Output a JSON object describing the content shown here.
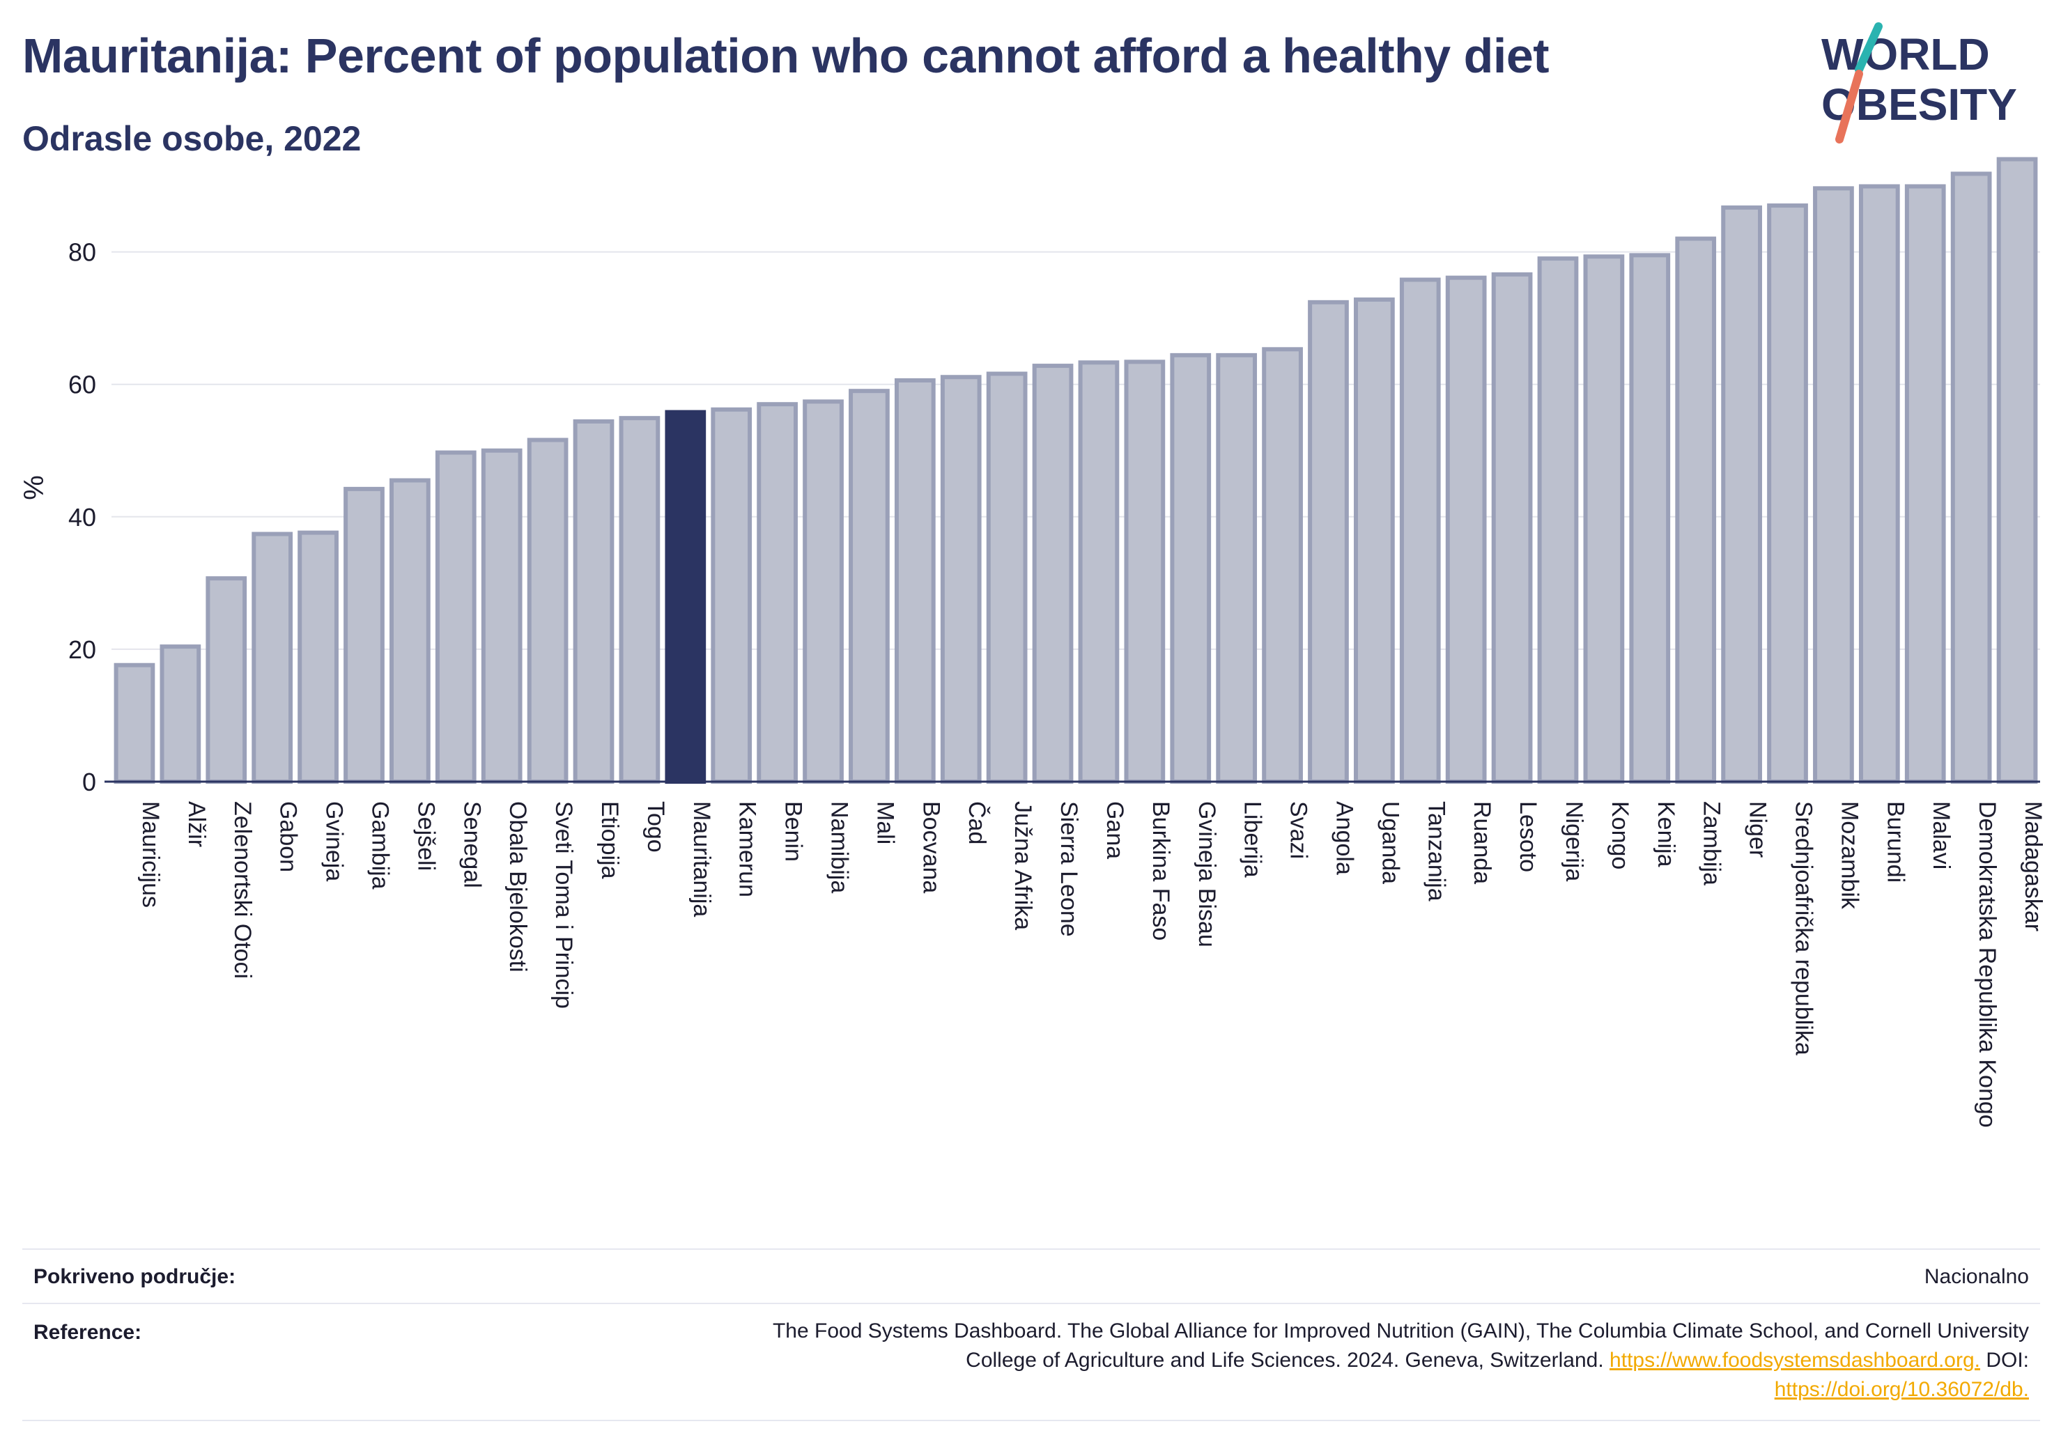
{
  "header": {
    "title": "Mauritanija: Percent of population who cannot afford a healthy diet",
    "subtitle": "Odrasle osobe, 2022",
    "logo": {
      "line1": "WORLD",
      "line2": "OBESITY"
    }
  },
  "colors": {
    "title": "#2b3462",
    "bar_fill": "#bcc0ce",
    "bar_stroke": "#9aa0b8",
    "highlight": "#2b3462",
    "logo_teal": "#2ab3b0",
    "logo_coral": "#e8735a",
    "link": "#f2a900"
  },
  "chart_data": {
    "type": "bar",
    "ylabel": "%",
    "ylim": [
      0,
      97
    ],
    "yticks": [
      0,
      20,
      40,
      60,
      80
    ],
    "grid": true,
    "highlight_category": "Mauritanija",
    "categories": [
      "Mauricijus",
      "Alžir",
      "Zelenortski Otoci",
      "Gabon",
      "Gvineja",
      "Gambija",
      "Sejšeli",
      "Senegal",
      "Obala Bjelokosti",
      "Sveti Toma i Princip",
      "Etiopija",
      "Togo",
      "Mauritanija",
      "Kamerun",
      "Benin",
      "Namibija",
      "Mali",
      "Bocvana",
      "Čad",
      "Južna Afrika",
      "Sierra Leone",
      "Gana",
      "Burkina Faso",
      "Gvineja Bisau",
      "Liberija",
      "Svazi",
      "Angola",
      "Uganda",
      "Tanzanija",
      "Ruanda",
      "Lesoto",
      "Nigerija",
      "Kongo",
      "Kenija",
      "Zambija",
      "Niger",
      "Srednjoafrička republika",
      "Mozambik",
      "Burundi",
      "Malavi",
      "Demokratska Republika Kongo",
      "Madagaskar"
    ],
    "values": [
      17.6,
      20.4,
      30.7,
      37.4,
      37.6,
      44.2,
      45.5,
      49.7,
      50.0,
      51.6,
      54.4,
      54.9,
      55.8,
      56.2,
      57.0,
      57.4,
      59.0,
      60.6,
      61.1,
      61.6,
      62.8,
      63.3,
      63.4,
      64.4,
      64.4,
      65.3,
      72.4,
      72.8,
      75.8,
      76.1,
      76.6,
      79.0,
      79.3,
      79.5,
      82.0,
      86.7,
      87.0,
      89.6,
      89.9,
      89.9,
      91.8,
      94.0
    ]
  },
  "footer": {
    "coverage_label": "Pokriveno područje:",
    "coverage_value": "Nacionalno",
    "reference_label": "Reference:",
    "reference_text_1": "The Food Systems Dashboard. The Global Alliance for Improved Nutrition (GAIN), The Columbia Climate School, and Cornell University",
    "reference_text_2": "College of Agriculture and Life Sciences. 2024. Geneva, Switzerland.",
    "reference_link_1": "https://www.foodsystemsdashboard.org.",
    "reference_doi_label": "DOI:",
    "reference_link_2": "https://doi.org/10.36072/db."
  }
}
